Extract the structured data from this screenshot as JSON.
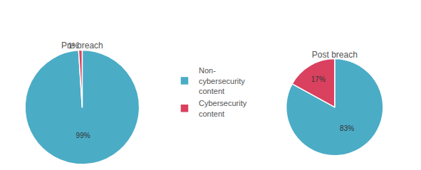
{
  "chart_data": [
    {
      "type": "pie",
      "title": "Pre breach",
      "categories": [
        "Non-cybersecurity content",
        "Cybersecurity content"
      ],
      "values": [
        99,
        1
      ],
      "value_labels": [
        "99%",
        "1%"
      ],
      "colors": [
        "#4bacc6",
        "#d9415f"
      ],
      "data_labels": true,
      "legend": "center"
    },
    {
      "type": "pie",
      "title": "Post breach",
      "categories": [
        "Non-cybersecurity content",
        "Cybersecurity content"
      ],
      "values": [
        83,
        17
      ],
      "value_labels": [
        "83%",
        "17%"
      ],
      "colors": [
        "#4bacc6",
        "#d9415f"
      ],
      "data_labels": true,
      "legend": "center"
    }
  ]
}
